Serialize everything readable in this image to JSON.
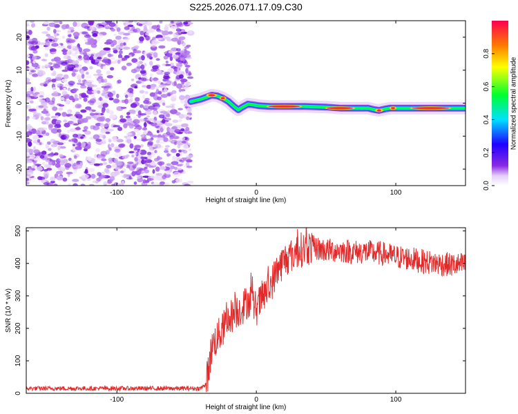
{
  "title": "S225.2026.071.17.09.C30",
  "chart_data": [
    {
      "type": "heatmap",
      "name": "spectrogram",
      "xlabel": "Height of straight line (km)",
      "ylabel": "Frequency (Hz)",
      "xlim": [
        -165,
        150
      ],
      "ylim": [
        -25,
        25
      ],
      "xticks": [
        -100,
        0,
        100
      ],
      "yticks": [
        -20,
        -10,
        0,
        10,
        20
      ],
      "noise_region_x": [
        -165,
        -47
      ],
      "ridge": {
        "x": [
          -47,
          -44,
          -40,
          -36,
          -32,
          -28,
          -24,
          -20,
          -16,
          -13,
          -10,
          -6,
          -2,
          2,
          10,
          20,
          35,
          50,
          60,
          70,
          80,
          85,
          88,
          92,
          96,
          100,
          110,
          120,
          130,
          140,
          150
        ],
        "freq": [
          0.5,
          0.8,
          1.2,
          1.8,
          2.4,
          2.2,
          1.5,
          0.5,
          -1.0,
          -2.0,
          -1.2,
          -0.3,
          -0.5,
          -0.8,
          -1.0,
          -1.0,
          -1.0,
          -1.2,
          -1.5,
          -1.5,
          -1.5,
          -2.0,
          -2.2,
          -1.8,
          -1.5,
          -1.5,
          -1.5,
          -1.5,
          -1.5,
          -1.5,
          -1.5
        ]
      },
      "colorbar": {
        "label": "Normalized spectral amplitude",
        "range": [
          0,
          1
        ],
        "ticks": [
          0.0,
          0.2,
          0.4,
          0.6,
          0.8
        ]
      }
    },
    {
      "type": "line",
      "name": "snr",
      "xlabel": "Height of straight line (km)",
      "ylabel": "SNR (10 * v/v)",
      "xlim": [
        -165,
        150
      ],
      "ylim": [
        0,
        510
      ],
      "xticks": [
        -100,
        0,
        100
      ],
      "yticks": [
        0,
        100,
        200,
        300,
        400,
        500
      ],
      "color": "#e02a2a",
      "series": [
        {
          "name": "SNR",
          "x": [
            -165,
            -140,
            -100,
            -60,
            -40,
            -36,
            -34,
            -32,
            -30,
            -25,
            -20,
            -15,
            -10,
            -5,
            0,
            5,
            10,
            15,
            20,
            25,
            30,
            40,
            50,
            60,
            70,
            80,
            90,
            100,
            110,
            120,
            130,
            140,
            150
          ],
          "y": [
            15,
            15,
            15,
            15,
            15,
            30,
            80,
            140,
            160,
            190,
            230,
            250,
            265,
            290,
            260,
            300,
            330,
            380,
            410,
            425,
            440,
            450,
            440,
            440,
            435,
            435,
            430,
            420,
            415,
            405,
            400,
            395,
            395
          ]
        }
      ]
    }
  ]
}
